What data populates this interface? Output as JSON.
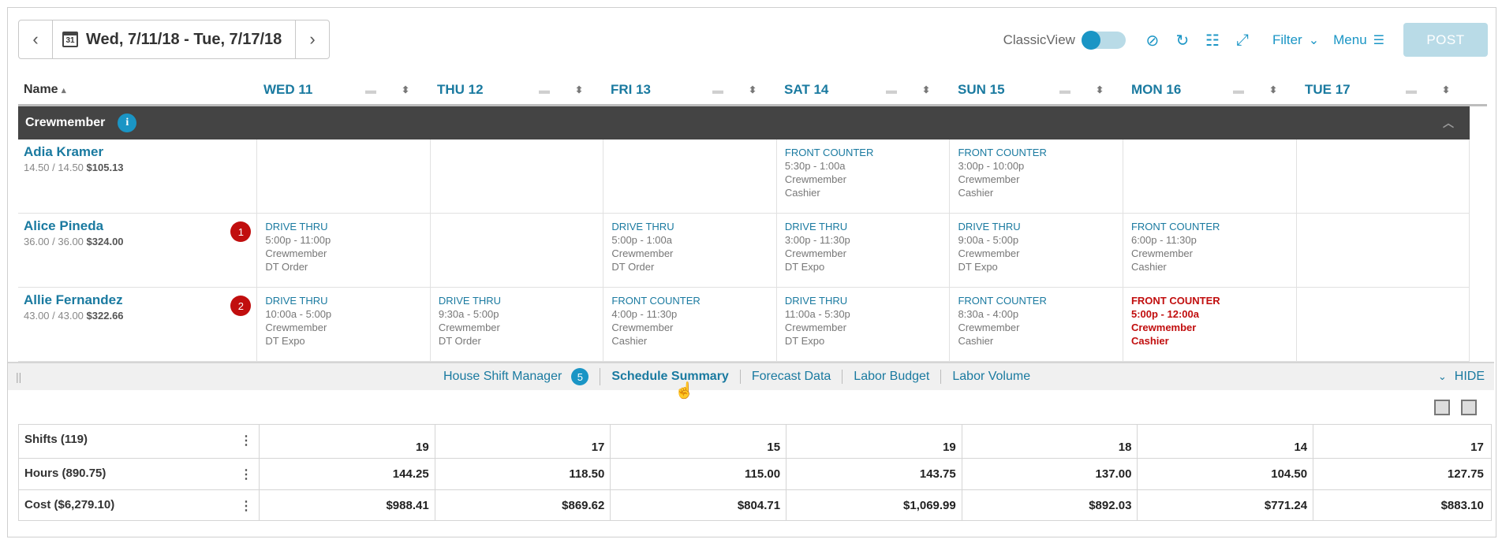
{
  "toolbar": {
    "date_range": "Wed, 7/11/18 - Tue, 7/17/18",
    "calendar_day": "31",
    "classic_view_label": "ClassicView",
    "filter_label": "Filter",
    "menu_label": "Menu",
    "post_label": "POST"
  },
  "schedule": {
    "name_header": "Name",
    "days": [
      "WED 11",
      "THU 12",
      "FRI 13",
      "SAT 14",
      "SUN 15",
      "MON 16",
      "TUE 17"
    ],
    "group": "Crewmember",
    "employees": [
      {
        "name": "Adia Kramer",
        "hours": "14.50 / 14.50",
        "cost": "$105.13",
        "badge": "",
        "shifts": [
          null,
          null,
          null,
          {
            "position": "FRONT COUNTER",
            "time": "5:30p - 1:00a",
            "role": "Crewmember",
            "station": "Cashier"
          },
          {
            "position": "FRONT COUNTER",
            "time": "3:00p - 10:00p",
            "role": "Crewmember",
            "station": "Cashier"
          },
          null,
          null
        ]
      },
      {
        "name": "Alice Pineda",
        "hours": "36.00 / 36.00",
        "cost": "$324.00",
        "badge": "1",
        "shifts": [
          {
            "position": "DRIVE THRU",
            "time": "5:00p - 11:00p",
            "role": "Crewmember",
            "station": "DT Order"
          },
          null,
          {
            "position": "DRIVE THRU",
            "time": "5:00p - 1:00a",
            "role": "Crewmember",
            "station": "DT Order"
          },
          {
            "position": "DRIVE THRU",
            "time": "3:00p - 11:30p",
            "role": "Crewmember",
            "station": "DT Expo"
          },
          {
            "position": "DRIVE THRU",
            "time": "9:00a - 5:00p",
            "role": "Crewmember",
            "station": "DT Expo"
          },
          {
            "position": "FRONT COUNTER",
            "time": "6:00p - 11:30p",
            "role": "Crewmember",
            "station": "Cashier"
          },
          null
        ]
      },
      {
        "name": "Allie Fernandez",
        "hours": "43.00 / 43.00",
        "cost": "$322.66",
        "badge": "2",
        "shifts": [
          {
            "position": "DRIVE THRU",
            "time": "10:00a - 5:00p",
            "role": "Crewmember",
            "station": "DT Expo"
          },
          {
            "position": "DRIVE THRU",
            "time": "9:30a - 5:00p",
            "role": "Crewmember",
            "station": "DT Order"
          },
          {
            "position": "FRONT COUNTER",
            "time": "4:00p - 11:30p",
            "role": "Crewmember",
            "station": "Cashier"
          },
          {
            "position": "DRIVE THRU",
            "time": "11:00a - 5:30p",
            "role": "Crewmember",
            "station": "DT Expo"
          },
          {
            "position": "FRONT COUNTER",
            "time": "8:30a - 4:00p",
            "role": "Crewmember",
            "station": "Cashier"
          },
          {
            "position": "FRONT COUNTER",
            "time": "5:00p - 12:00a",
            "role": "Crewmember",
            "station": "Cashier",
            "alert": true
          },
          null
        ]
      }
    ]
  },
  "panel": {
    "tabs": [
      {
        "label": "House Shift Manager",
        "count": "5"
      },
      {
        "label": "Schedule Summary",
        "active": true
      },
      {
        "label": "Forecast Data"
      },
      {
        "label": "Labor Budget"
      },
      {
        "label": "Labor Volume"
      }
    ],
    "hide_label": "HIDE"
  },
  "summary": {
    "rows": [
      {
        "label": "Shifts (119)",
        "values": [
          "19",
          "17",
          "15",
          "19",
          "18",
          "14",
          "17"
        ]
      },
      {
        "label": "Hours (890.75)",
        "values": [
          "144.25",
          "118.50",
          "115.00",
          "143.75",
          "137.00",
          "104.50",
          "127.75"
        ]
      },
      {
        "label": "Cost ($6,279.10)",
        "values": [
          "$988.41",
          "$869.62",
          "$804.71",
          "$1,069.99",
          "$892.03",
          "$771.24",
          "$883.10"
        ]
      }
    ]
  },
  "colors": {
    "accent": "#1a95c5",
    "link": "#1a7aa0",
    "alert": "#c10e0e",
    "group_bar": "#444444"
  }
}
